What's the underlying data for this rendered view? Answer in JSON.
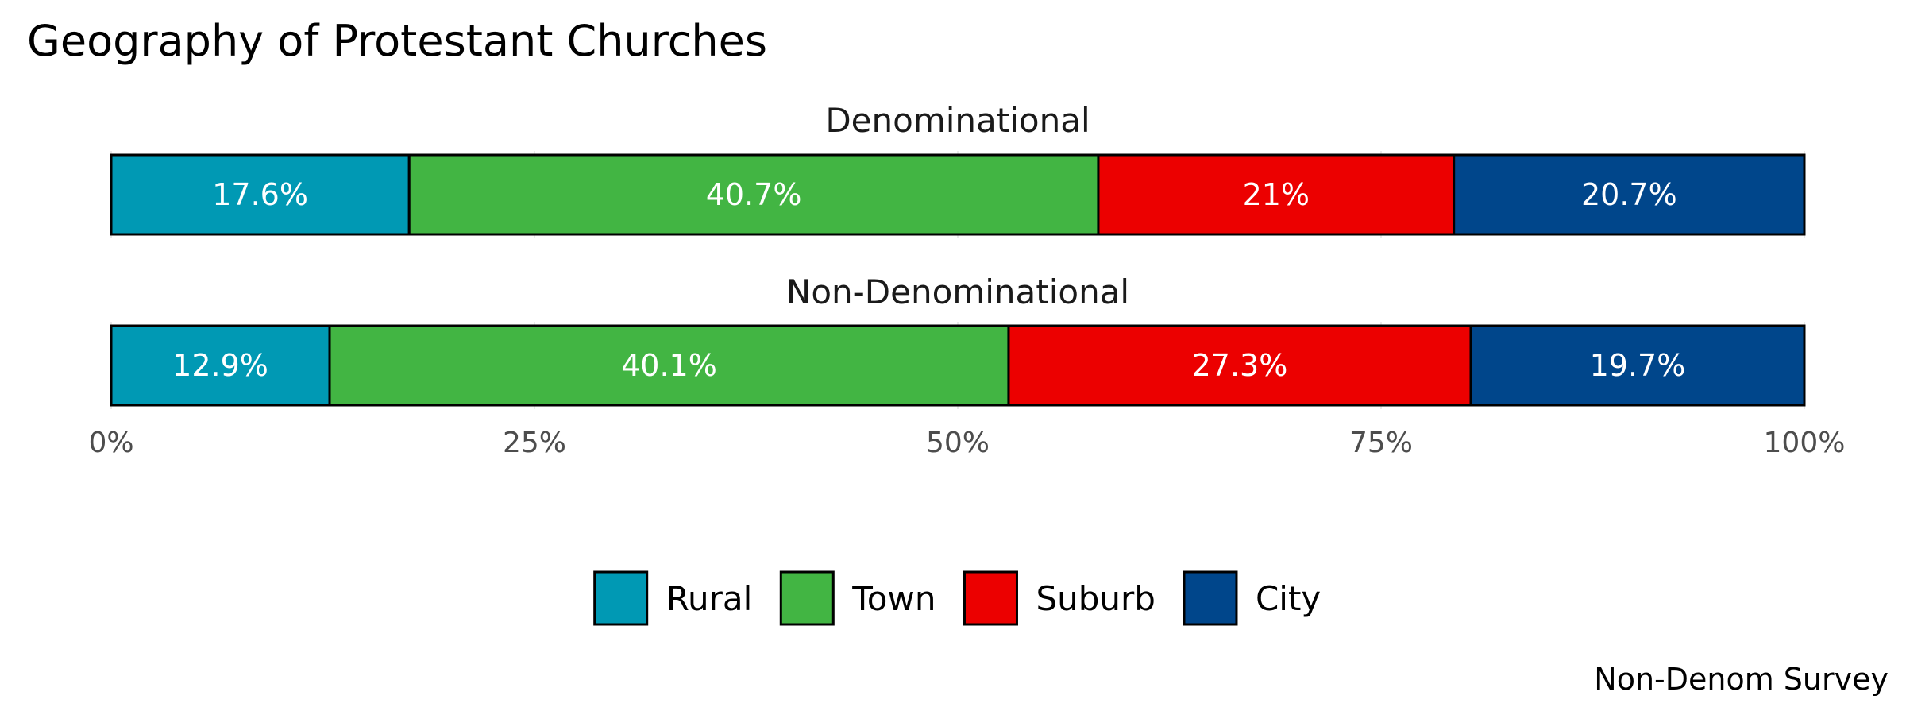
{
  "chart_data": {
    "type": "bar",
    "orientation": "horizontal",
    "stacked": "percent",
    "title": "Geography of Protestant Churches",
    "caption": "Non-Denom Survey",
    "categories": [
      "Rural",
      "Town",
      "Suburb",
      "City"
    ],
    "colors": {
      "Rural": "#0099b4",
      "Town": "#42b543",
      "Suburb": "#ec0000",
      "City": "#00468b"
    },
    "series": [
      {
        "name": "Denominational",
        "values": [
          17.6,
          40.7,
          21,
          20.7
        ],
        "labels": [
          "17.6%",
          "40.7%",
          "21%",
          "20.7%"
        ]
      },
      {
        "name": "Non-Denominational",
        "values": [
          12.9,
          40.1,
          27.3,
          19.7
        ],
        "labels": [
          "12.9%",
          "40.1%",
          "27.3%",
          "19.7%"
        ]
      }
    ],
    "xlim": [
      0,
      100
    ],
    "x_ticks": [
      0,
      25,
      50,
      75,
      100
    ],
    "x_tick_labels": [
      "0%",
      "25%",
      "50%",
      "75%",
      "100%"
    ],
    "xlabel": "",
    "ylabel": "",
    "grid": true,
    "legend_position": "bottom"
  }
}
